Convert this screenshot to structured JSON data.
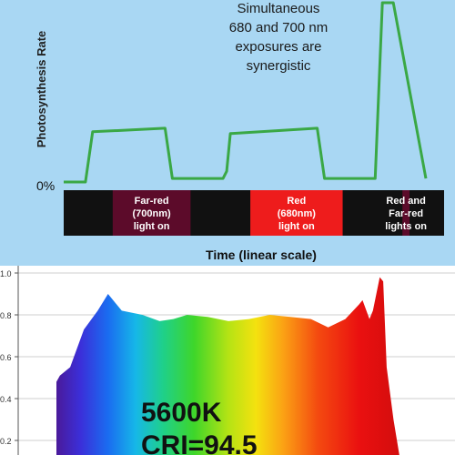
{
  "chart_data": [
    {
      "type": "line",
      "ylabel": "Photosynthesis Rate",
      "xlabel": "Time (linear scale)",
      "y_tick_labels": [
        "0%"
      ],
      "annotation": [
        "Simultaneous",
        "680 and 700 nm",
        "exposures are",
        "synergistic"
      ],
      "line_color": "#3aa845",
      "x": [
        0,
        6,
        8,
        28,
        30,
        44,
        45,
        46,
        70,
        72,
        86,
        88,
        91,
        100
      ],
      "y": [
        0,
        0,
        0.28,
        0.3,
        0.02,
        0.02,
        0.06,
        0.27,
        0.3,
        0.02,
        0.02,
        1.0,
        1.0,
        0.02
      ],
      "light_periods": [
        {
          "label": [
            "Far-red",
            "(700nm)",
            "light on"
          ],
          "start": 8,
          "end": 30,
          "color": "#5c0b2a"
        },
        {
          "label": [
            "Red",
            "(680nm)",
            "light on"
          ],
          "start": 46,
          "end": 72,
          "color": "#ee1c1c"
        },
        {
          "label": [
            "Red and",
            "Far-red",
            "lights on"
          ],
          "start": 88,
          "end": 110,
          "color": "#5c0b2a"
        }
      ]
    },
    {
      "type": "area",
      "y_tick_labels": [
        "1.0",
        "0.8",
        "0.6",
        "0.4",
        "0.2"
      ],
      "ylim": [
        0,
        1.0
      ],
      "fill": "visible-spectrum-rainbow",
      "annotation": [
        "5600K",
        "CRI=94.5"
      ],
      "x": [
        0,
        0.01,
        0.04,
        0.08,
        0.12,
        0.15,
        0.19,
        0.25,
        0.3,
        0.34,
        0.38,
        0.44,
        0.5,
        0.56,
        0.62,
        0.68,
        0.74,
        0.79,
        0.84,
        0.88,
        0.89,
        0.91,
        0.92,
        0.94,
        0.95,
        0.96,
        0.98,
        1.0
      ],
      "y": [
        0.48,
        0.51,
        0.55,
        0.73,
        0.82,
        0.9,
        0.82,
        0.8,
        0.77,
        0.78,
        0.8,
        0.79,
        0.77,
        0.78,
        0.8,
        0.79,
        0.78,
        0.74,
        0.78,
        0.85,
        0.87,
        0.78,
        0.82,
        0.98,
        0.96,
        0.55,
        0.3,
        0.1
      ]
    }
  ]
}
